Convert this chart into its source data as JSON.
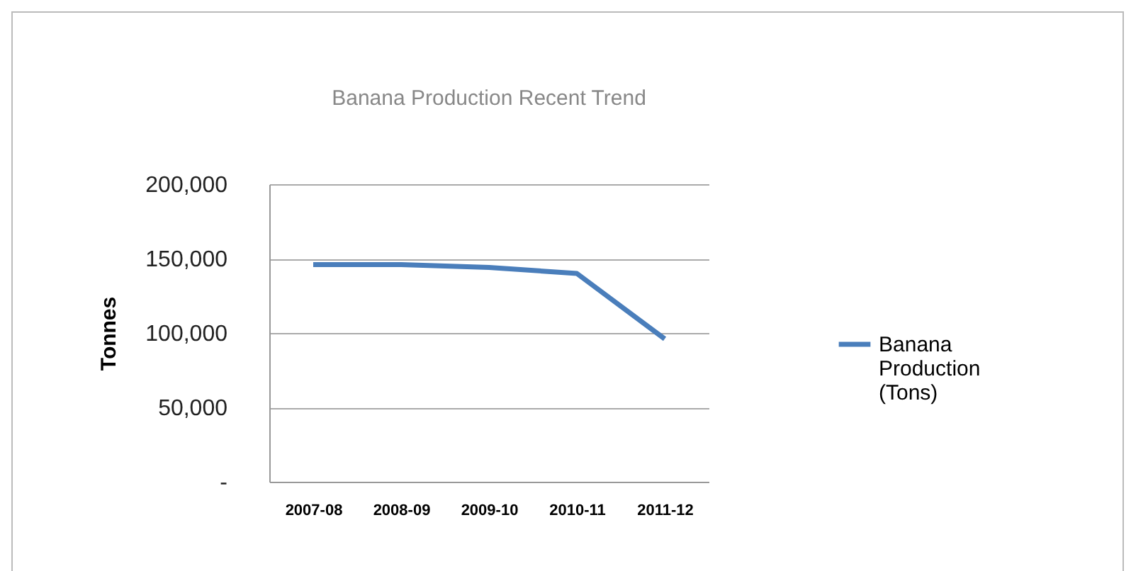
{
  "chart_data": {
    "type": "line",
    "title": "Banana Production  Recent Trend",
    "ylabel": "Tonnes",
    "categories": [
      "2007-08",
      "2008-09",
      "2009-10",
      "2010-11",
      "2011-12"
    ],
    "series": [
      {
        "name": "Banana Production (Tons)",
        "color": "#4a7ebb",
        "values": [
          146000,
          146000,
          144000,
          140000,
          96000
        ]
      }
    ],
    "ylim": [
      0,
      200000
    ],
    "yticks": [
      {
        "value": 0,
        "label": "-"
      },
      {
        "value": 50000,
        "label": "50,000"
      },
      {
        "value": 100000,
        "label": "100,000"
      },
      {
        "value": 150000,
        "label": "150,000"
      },
      {
        "value": 200000,
        "label": "200,000"
      }
    ],
    "grid": "y",
    "legend": "right",
    "marker": "none",
    "line_style": "solid"
  }
}
